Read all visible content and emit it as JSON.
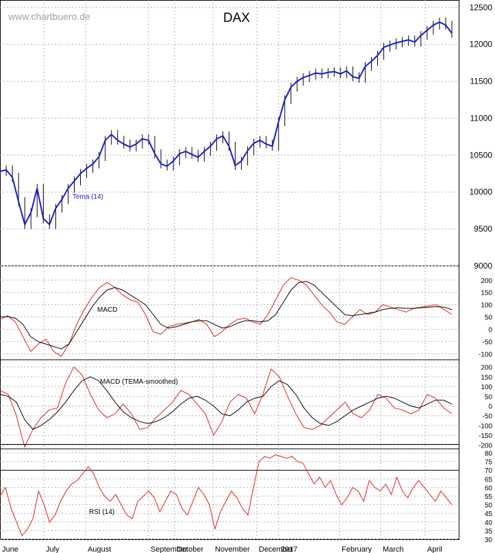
{
  "header": {
    "site": "www.chartbuero.de",
    "title": "DAX"
  },
  "colors": {
    "price_bar": "#000000",
    "tema": "#1a1acc",
    "signal": "#000000",
    "indicator": "#dd2020",
    "grid": "#b0b0b0"
  },
  "chart_data": [
    {
      "type": "line",
      "title": "DAX",
      "x_labels": [
        "June",
        "July",
        "August",
        "September",
        "October",
        "November",
        "December",
        "2017",
        "February",
        "March",
        "April"
      ],
      "ylim": [
        9000,
        12600
      ],
      "yticks": [
        9000,
        9500,
        10000,
        10500,
        11000,
        11500,
        12000,
        12500
      ],
      "series": [
        {
          "name": "Tema (14)",
          "label": "Tema (14)",
          "values": [
            10280,
            10300,
            10200,
            9870,
            9560,
            9720,
            10050,
            9640,
            9560,
            9780,
            9900,
            10050,
            10150,
            10250,
            10320,
            10380,
            10480,
            10700,
            10780,
            10700,
            10650,
            10610,
            10650,
            10720,
            10700,
            10520,
            10380,
            10350,
            10420,
            10520,
            10550,
            10510,
            10470,
            10550,
            10620,
            10720,
            10760,
            10620,
            10360,
            10420,
            10560,
            10660,
            10700,
            10650,
            10620,
            10950,
            11250,
            11420,
            11500,
            11550,
            11580,
            11610,
            11600,
            11620,
            11630,
            11600,
            11640,
            11560,
            11540,
            11700,
            11770,
            11850,
            11960,
            11990,
            12020,
            12040,
            12060,
            12030,
            12120,
            12190,
            12260,
            12300,
            12260,
            12150
          ]
        }
      ]
    },
    {
      "type": "line",
      "series_label": "MACD",
      "ylim": [
        -110,
        230
      ],
      "yticks": [
        200,
        150,
        100,
        50,
        0,
        -50,
        -100
      ],
      "series": [
        {
          "values": [
            40,
            55,
            30,
            -30,
            -90,
            -60,
            -40,
            -90,
            -110,
            -60,
            20,
            80,
            130,
            170,
            190,
            170,
            140,
            120,
            110,
            60,
            -10,
            -20,
            10,
            20,
            25,
            30,
            40,
            20,
            -30,
            -10,
            20,
            40,
            45,
            30,
            20,
            60,
            120,
            180,
            210,
            200,
            180,
            140,
            100,
            70,
            30,
            20,
            50,
            80,
            60,
            70,
            100,
            90,
            80,
            70,
            85,
            90,
            95,
            100,
            80,
            60
          ]
        },
        {
          "values": [
            50,
            52,
            45,
            20,
            -30,
            -50,
            -60,
            -70,
            -80,
            -60,
            -10,
            40,
            90,
            130,
            160,
            170,
            160,
            140,
            120,
            100,
            60,
            20,
            5,
            10,
            20,
            30,
            35,
            35,
            20,
            5,
            10,
            25,
            35,
            35,
            30,
            35,
            60,
            110,
            160,
            190,
            195,
            180,
            150,
            120,
            90,
            60,
            55,
            60,
            65,
            70,
            80,
            85,
            88,
            85,
            85,
            88,
            90,
            92,
            90,
            80
          ]
        }
      ]
    },
    {
      "type": "line",
      "series_label": "MACD (TEMA-smoothed)",
      "ylim": [
        -220,
        220
      ],
      "yticks": [
        200,
        150,
        100,
        50,
        0,
        -50,
        -100,
        -150,
        -200
      ],
      "series": [
        {
          "values": [
            80,
            60,
            -50,
            -210,
            -120,
            -60,
            -20,
            -10,
            120,
            200,
            160,
            60,
            -20,
            -60,
            -40,
            10,
            -40,
            -120,
            -110,
            -60,
            -20,
            20,
            80,
            60,
            10,
            -40,
            -150,
            -80,
            20,
            60,
            40,
            -40,
            60,
            190,
            150,
            50,
            -40,
            -110,
            -120,
            -100,
            -60,
            -20,
            20,
            -40,
            -60,
            -20,
            60,
            40,
            -10,
            -20,
            -40,
            -20,
            60,
            40,
            -10,
            -40
          ]
        },
        {
          "values": [
            60,
            50,
            20,
            -70,
            -120,
            -100,
            -70,
            -30,
            20,
            80,
            130,
            150,
            130,
            80,
            20,
            -30,
            -60,
            -80,
            -90,
            -80,
            -60,
            -30,
            10,
            40,
            50,
            30,
            0,
            -40,
            -50,
            -20,
            20,
            40,
            50,
            100,
            130,
            110,
            60,
            -10,
            -60,
            -90,
            -100,
            -80,
            -50,
            -20,
            0,
            20,
            40,
            50,
            40,
            20,
            0,
            -10,
            10,
            30,
            30,
            10
          ]
        }
      ]
    },
    {
      "type": "line",
      "series_label": "RSI (14)",
      "ylim": [
        30,
        82
      ],
      "yticks": [
        80,
        75,
        70,
        65,
        60,
        55,
        50,
        45,
        40,
        35,
        30
      ],
      "reference_lines": [
        85,
        70
      ],
      "series": [
        {
          "values": [
            55,
            60,
            48,
            40,
            32,
            36,
            42,
            58,
            50,
            40,
            44,
            52,
            58,
            62,
            64,
            68,
            72,
            68,
            60,
            55,
            52,
            56,
            50,
            44,
            42,
            52,
            55,
            58,
            54,
            46,
            52,
            58,
            56,
            48,
            44,
            52,
            60,
            56,
            50,
            36,
            46,
            52,
            58,
            54,
            48,
            44,
            60,
            75,
            78,
            77,
            79,
            78,
            77,
            78,
            75,
            74,
            68,
            62,
            66,
            60,
            64,
            56,
            50,
            54,
            60,
            58,
            52,
            64,
            60,
            58,
            62,
            56,
            66,
            58,
            54,
            60,
            64,
            60,
            56,
            52,
            58,
            54,
            50
          ]
        }
      ]
    }
  ]
}
